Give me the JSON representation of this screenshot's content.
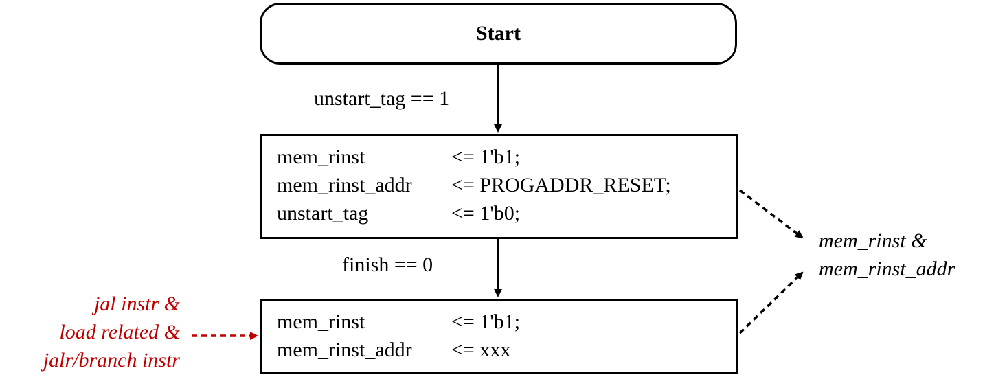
{
  "start_node": {
    "label": "Start"
  },
  "edges": {
    "start_to_init": {
      "condition": "unstart_tag == 1"
    },
    "init_to_fetch": {
      "condition": "finish == 0"
    }
  },
  "init_state": {
    "statements": [
      {
        "signal": "mem_rinst",
        "assignment": "<= 1'b1;"
      },
      {
        "signal": "mem_rinst_addr",
        "assignment": "<= PROGADDR_RESET;"
      },
      {
        "signal": "unstart_tag",
        "assignment": "<= 1'b0;"
      }
    ]
  },
  "fetch_state": {
    "statements": [
      {
        "signal": "mem_rinst",
        "assignment": "<= 1'b1;"
      },
      {
        "signal": "mem_rinst_addr",
        "assignment": "<= xxx"
      }
    ]
  },
  "output_note": {
    "lines": [
      "mem_rinst &",
      "mem_rinst_addr"
    ]
  },
  "input_note": {
    "lines": [
      "jal instr &",
      "load related &",
      "jalr/branch instr"
    ],
    "color": "#c00000"
  },
  "colors": {
    "stroke": "#000000",
    "accent": "#c00000",
    "background": "#ffffff"
  }
}
